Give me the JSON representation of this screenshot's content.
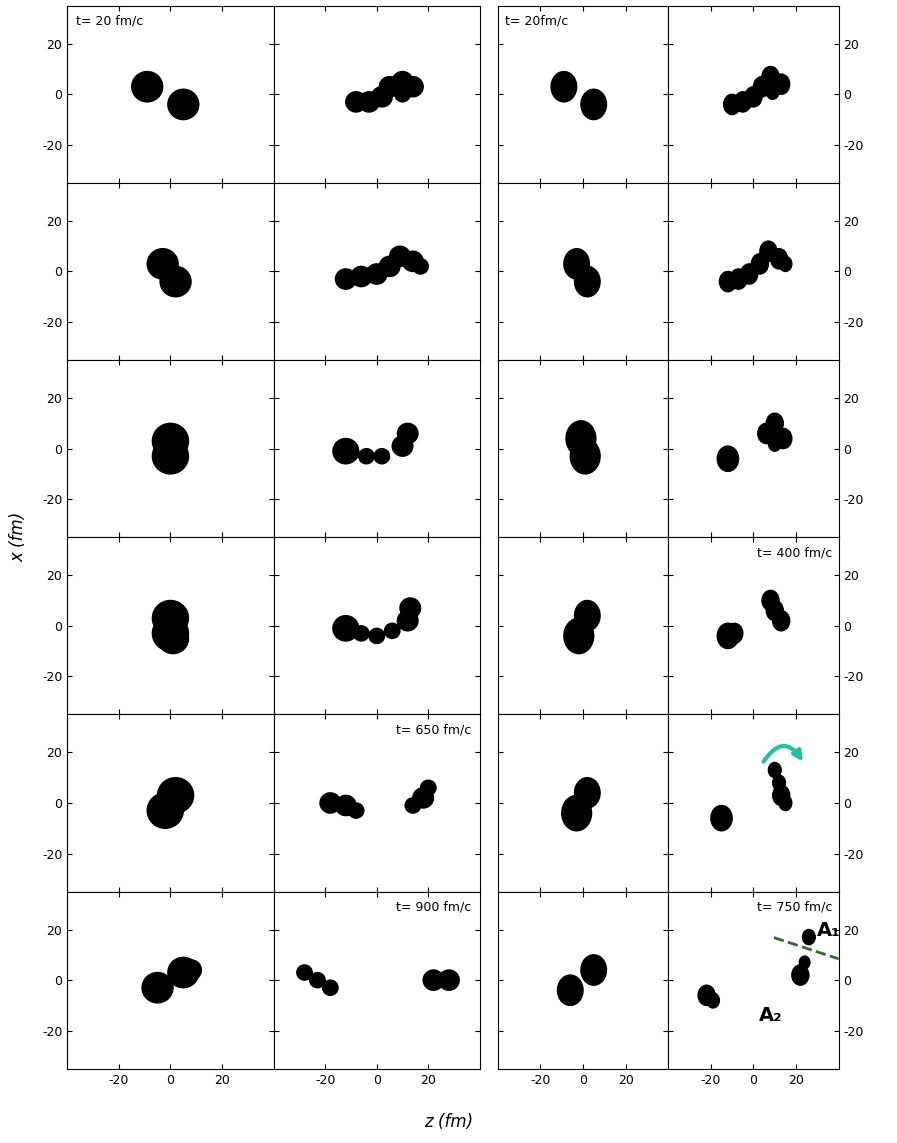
{
  "chart_data": {
    "type": "density_snapshots",
    "xlabel": "z (fm)",
    "ylabel": "x (fm)",
    "color": "#000000",
    "xlim": [
      -40,
      40
    ],
    "ylim": [
      -35,
      35
    ],
    "xticks": [
      -20,
      0,
      20
    ],
    "yticks": [
      -20,
      0,
      20
    ],
    "panels": [
      [
        {
          "label": "t= 20 fm/c",
          "blobs": [
            [
              -9,
              3,
              6
            ],
            [
              5,
              -4,
              6
            ]
          ]
        },
        {
          "blobs": [
            [
              -8,
              -3,
              4
            ],
            [
              -3,
              -3,
              4
            ],
            [
              2,
              -1,
              4
            ],
            [
              5,
              3,
              4
            ],
            [
              10,
              5,
              4
            ],
            [
              14,
              3,
              4
            ],
            [
              10,
              0,
              3
            ]
          ]
        },
        {
          "label": "t= 20fm/c",
          "blobs": [
            [
              -9,
              3,
              6
            ],
            [
              5,
              -4,
              6
            ]
          ]
        },
        {
          "blobs": [
            [
              -10,
              -4,
              4
            ],
            [
              -5,
              -3,
              4
            ],
            [
              0,
              -1,
              4
            ],
            [
              4,
              3,
              4
            ],
            [
              8,
              7,
              4
            ],
            [
              13,
              4,
              4
            ],
            [
              9,
              1,
              3
            ]
          ]
        }
      ],
      [
        {
          "blobs": [
            [
              -3,
              3,
              6
            ],
            [
              2,
              -4,
              6
            ]
          ]
        },
        {
          "blobs": [
            [
              -12,
              -3,
              4
            ],
            [
              -6,
              -2,
              4
            ],
            [
              0,
              -1,
              4
            ],
            [
              5,
              2,
              4
            ],
            [
              9,
              6,
              4
            ],
            [
              14,
              4,
              4
            ],
            [
              17,
              2,
              3
            ]
          ]
        },
        {
          "blobs": [
            [
              -3,
              3,
              6
            ],
            [
              2,
              -4,
              6
            ]
          ]
        },
        {
          "blobs": [
            [
              -12,
              -4,
              4
            ],
            [
              -7,
              -3,
              4
            ],
            [
              -2,
              -1,
              4
            ],
            [
              3,
              3,
              4
            ],
            [
              7,
              8,
              4
            ],
            [
              12,
              5,
              4
            ],
            [
              15,
              3,
              3
            ]
          ]
        }
      ],
      [
        {
          "blobs": [
            [
              0,
              3,
              7
            ],
            [
              0,
              -3,
              7
            ]
          ]
        },
        {
          "blobs": [
            [
              -12,
              -1,
              5
            ],
            [
              -4,
              -3,
              3
            ],
            [
              2,
              -3,
              3
            ],
            [
              10,
              1,
              4
            ],
            [
              12,
              6,
              4
            ]
          ]
        },
        {
          "blobs": [
            [
              -1,
              4,
              7
            ],
            [
              1,
              -3,
              7
            ]
          ]
        },
        {
          "blobs": [
            [
              -12,
              -4,
              5
            ],
            [
              6,
              6,
              4
            ],
            [
              10,
              10,
              4
            ],
            [
              14,
              4,
              4
            ],
            [
              10,
              2,
              3
            ]
          ]
        }
      ],
      [
        {
          "blobs": [
            [
              0,
              3,
              7
            ],
            [
              0,
              -3,
              7
            ],
            [
              1,
              -5,
              6
            ]
          ]
        },
        {
          "blobs": [
            [
              -12,
              -1,
              5
            ],
            [
              -6,
              -3,
              3
            ],
            [
              0,
              -4,
              3
            ],
            [
              6,
              -2,
              3
            ],
            [
              12,
              2,
              4
            ],
            [
              13,
              7,
              4
            ]
          ]
        },
        {
          "blobs": [
            [
              -2,
              -4,
              7
            ],
            [
              2,
              4,
              6
            ]
          ]
        },
        {
          "label": "t= 400 fm/c",
          "blobs": [
            [
              -12,
              -4,
              5
            ],
            [
              -9,
              -3,
              4
            ],
            [
              8,
              10,
              4
            ],
            [
              10,
              6,
              4
            ],
            [
              13,
              2,
              4
            ]
          ]
        }
      ],
      [
        {
          "blobs": [
            [
              -2,
              -3,
              7
            ],
            [
              2,
              3,
              7
            ]
          ]
        },
        {
          "label": "t= 650 fm/c",
          "blobs": [
            [
              -18,
              0,
              4
            ],
            [
              -12,
              -1,
              4
            ],
            [
              -8,
              -3,
              3
            ],
            [
              18,
              2,
              4
            ],
            [
              20,
              6,
              3
            ],
            [
              14,
              -1,
              3
            ]
          ]
        },
        {
          "blobs": [
            [
              -3,
              -4,
              7
            ],
            [
              2,
              4,
              6
            ]
          ]
        },
        {
          "blobs": [
            [
              -15,
              -6,
              5
            ],
            [
              10,
              13,
              3
            ],
            [
              12,
              8,
              3
            ],
            [
              13,
              3,
              4
            ],
            [
              15,
              0,
              3
            ]
          ]
        }
      ],
      [
        {
          "blobs": [
            [
              -5,
              -3,
              6
            ],
            [
              5,
              3,
              6
            ],
            [
              8,
              4,
              4
            ]
          ]
        },
        {
          "label": "t= 900 fm/c",
          "blobs": [
            [
              -28,
              3,
              3
            ],
            [
              -23,
              0,
              3
            ],
            [
              -18,
              -3,
              3
            ],
            [
              22,
              0,
              4
            ],
            [
              28,
              0,
              4
            ]
          ]
        },
        {
          "blobs": [
            [
              -6,
              -4,
              6
            ],
            [
              5,
              4,
              6
            ]
          ]
        },
        {
          "label": "t= 750 fm/c",
          "blobs": [
            [
              -22,
              -6,
              4
            ],
            [
              -19,
              -8,
              3
            ],
            [
              26,
              17,
              3
            ],
            [
              22,
              2,
              4
            ],
            [
              24,
              7,
              2.5
            ]
          ],
          "annotations": [
            "A₁",
            "A₂"
          ]
        }
      ]
    ]
  }
}
